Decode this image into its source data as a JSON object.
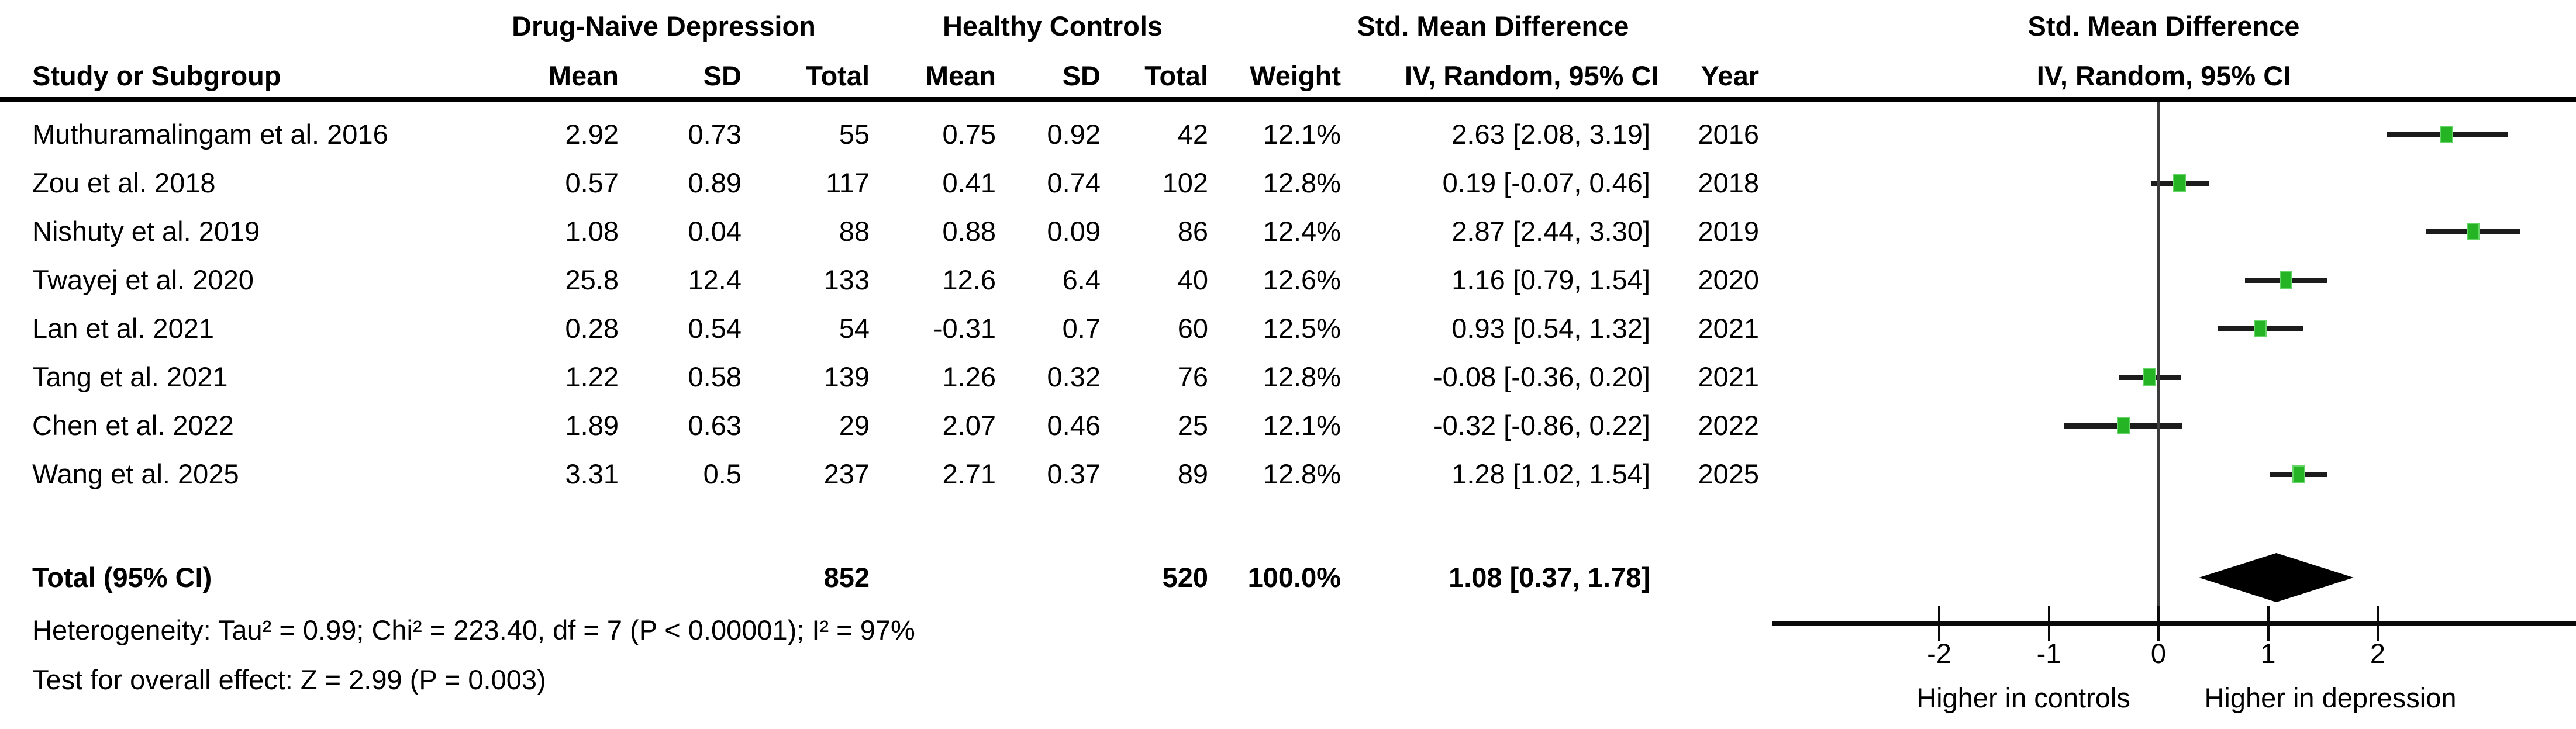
{
  "colors": {
    "marker_green": "#24b424",
    "marker_green_border": "#67d467",
    "ci_line": "#1c1c1c",
    "diamond": "#000000",
    "zero_line": "#3c3c3c",
    "text": "#000000",
    "background": "#ffffff"
  },
  "table": {
    "group_header_left": "Drug-Naive Depression",
    "group_header_mid": "Healthy Controls",
    "group_header_smd": "Std. Mean Difference",
    "col_headers": {
      "study": "Study or Subgroup",
      "mean": "Mean",
      "sd": "SD",
      "total": "Total",
      "weight": "Weight",
      "iv": "IV, Random, 95% CI",
      "year": "Year"
    }
  },
  "chart_data": {
    "type": "forest",
    "plot_title": "Std. Mean Difference",
    "plot_subtitle": "IV, Random, 95% CI",
    "studies": [
      {
        "study": "Muthuramalingam et al. 2016",
        "mean1": "2.92",
        "sd1": "0.73",
        "total1": "55",
        "mean2": "0.75",
        "sd2": "0.92",
        "total2": "42",
        "weight": "12.1%",
        "ci_text": "2.63 [2.08, 3.19]",
        "year": "2016",
        "est": 2.63,
        "lo": 2.08,
        "hi": 3.19
      },
      {
        "study": "Zou et al. 2018",
        "mean1": "0.57",
        "sd1": "0.89",
        "total1": "117",
        "mean2": "0.41",
        "sd2": "0.74",
        "total2": "102",
        "weight": "12.8%",
        "ci_text": "0.19 [-0.07, 0.46]",
        "year": "2018",
        "est": 0.19,
        "lo": -0.07,
        "hi": 0.46
      },
      {
        "study": "Nishuty et al. 2019",
        "mean1": "1.08",
        "sd1": "0.04",
        "total1": "88",
        "mean2": "0.88",
        "sd2": "0.09",
        "total2": "86",
        "weight": "12.4%",
        "ci_text": "2.87 [2.44, 3.30]",
        "year": "2019",
        "est": 2.87,
        "lo": 2.44,
        "hi": 3.3
      },
      {
        "study": "Twayej et al. 2020",
        "mean1": "25.8",
        "sd1": "12.4",
        "total1": "133",
        "mean2": "12.6",
        "sd2": "6.4",
        "total2": "40",
        "weight": "12.6%",
        "ci_text": "1.16 [0.79, 1.54]",
        "year": "2020",
        "est": 1.16,
        "lo": 0.79,
        "hi": 1.54
      },
      {
        "study": "Lan et al. 2021",
        "mean1": "0.28",
        "sd1": "0.54",
        "total1": "54",
        "mean2": "-0.31",
        "sd2": "0.7",
        "total2": "60",
        "weight": "12.5%",
        "ci_text": "0.93 [0.54, 1.32]",
        "year": "2021",
        "est": 0.93,
        "lo": 0.54,
        "hi": 1.32
      },
      {
        "study": "Tang et al. 2021",
        "mean1": "1.22",
        "sd1": "0.58",
        "total1": "139",
        "mean2": "1.26",
        "sd2": "0.32",
        "total2": "76",
        "weight": "12.8%",
        "ci_text": "-0.08 [-0.36, 0.20]",
        "year": "2021",
        "est": -0.08,
        "lo": -0.36,
        "hi": 0.2
      },
      {
        "study": "Chen et al. 2022",
        "mean1": "1.89",
        "sd1": "0.63",
        "total1": "29",
        "mean2": "2.07",
        "sd2": "0.46",
        "total2": "25",
        "weight": "12.1%",
        "ci_text": "-0.32 [-0.86, 0.22]",
        "year": "2022",
        "est": -0.32,
        "lo": -0.86,
        "hi": 0.22
      },
      {
        "study": "Wang et al. 2025",
        "mean1": "3.31",
        "sd1": "0.5",
        "total1": "237",
        "mean2": "2.71",
        "sd2": "0.37",
        "total2": "89",
        "weight": "12.8%",
        "ci_text": "1.28 [1.02, 1.54]",
        "year": "2025",
        "est": 1.28,
        "lo": 1.02,
        "hi": 1.54
      }
    ],
    "total": {
      "label": "Total (95% CI)",
      "total1": "852",
      "total2": "520",
      "weight": "100.0%",
      "ci_text": "1.08 [0.37, 1.78]",
      "est": 1.08,
      "lo": 0.37,
      "hi": 1.78
    },
    "footnotes": {
      "heterogeneity": "Heterogeneity: Tau² = 0.99; Chi² = 223.40, df = 7 (P < 0.00001); I² = 97%",
      "overall_effect": "Test for overall effect: Z = 2.99 (P = 0.003)"
    },
    "axis": {
      "ticks": [
        "-2",
        "-1",
        "0",
        "1",
        "2"
      ],
      "left_label": "Higher in controls",
      "right_label": "Higher in depression",
      "xlim": [
        -3.5,
        3.8
      ]
    }
  }
}
